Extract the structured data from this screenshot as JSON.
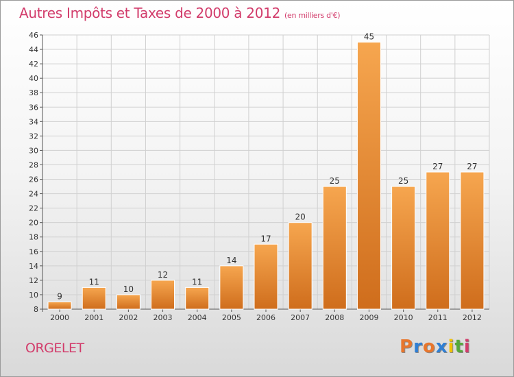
{
  "title": "Autres Impôts et Taxes de 2000 à 2012",
  "subtitle": "(en milliers d'€)",
  "city": "ORGELET",
  "logo": {
    "text": "Proxiti",
    "colors": [
      "#e8762c",
      "#2f7fd4",
      "#e8762c",
      "#2f7fd4",
      "#f2c200",
      "#55a83a",
      "#d23c6b"
    ]
  },
  "colors": {
    "accent": "#d23c6b",
    "bar_top": "#f6a64f",
    "bar_bottom": "#cf6d1c",
    "bar_edge": "#ffffff"
  },
  "chart_data": {
    "type": "bar",
    "categories": [
      "2000",
      "2001",
      "2002",
      "2003",
      "2004",
      "2005",
      "2006",
      "2007",
      "2008",
      "2009",
      "2010",
      "2011",
      "2012"
    ],
    "values": [
      9,
      11,
      10,
      12,
      11,
      14,
      17,
      20,
      25,
      45,
      25,
      27,
      27
    ],
    "ylim": [
      8,
      46
    ],
    "yticks": [
      8,
      10,
      12,
      14,
      16,
      18,
      20,
      22,
      24,
      26,
      28,
      30,
      32,
      34,
      36,
      38,
      40,
      42,
      44,
      46
    ],
    "grid": true,
    "xlabel": "",
    "ylabel": ""
  }
}
